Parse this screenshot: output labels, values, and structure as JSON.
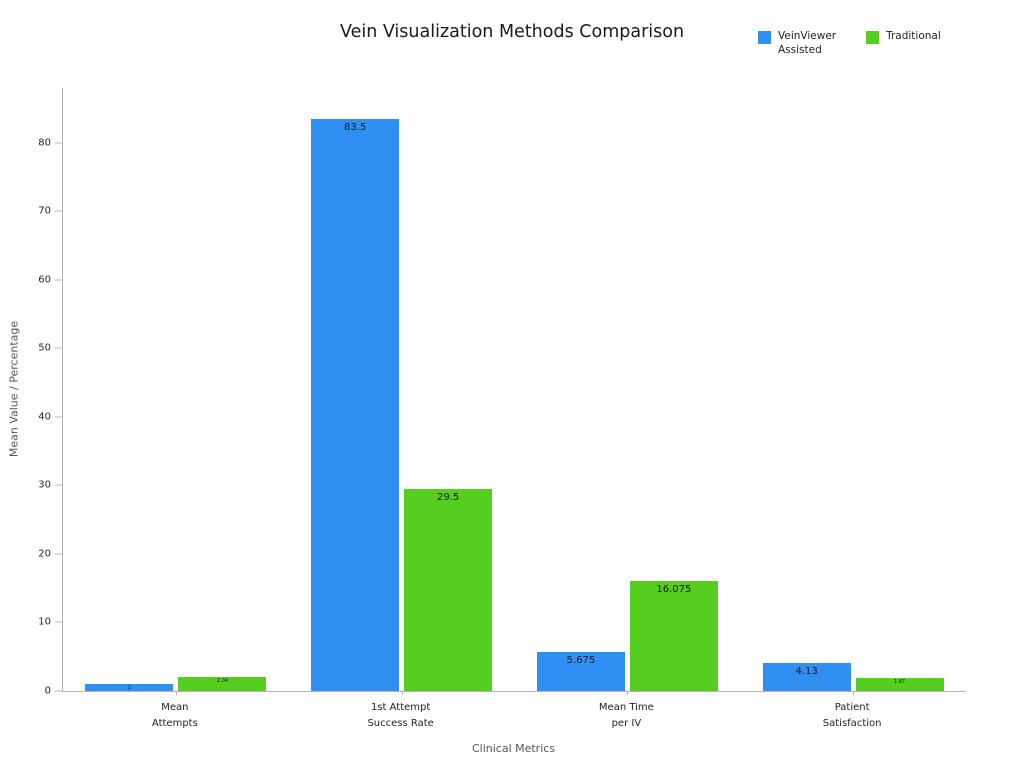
{
  "title": "Vein Visualization Methods Comparison",
  "legend": [
    {
      "label": "VeinViewer\nAssisted",
      "color": "#2f8ff3"
    },
    {
      "label": "Traditional",
      "color": "#55ce1f"
    }
  ],
  "chart_data": {
    "type": "bar",
    "title": "Vein Visualization Methods Comparison",
    "xlabel": "Clinical Metrics",
    "ylabel": "Mean Value / Percentage",
    "categories": [
      "Mean\nAttempts",
      "1st Attempt\nSuccess Rate",
      "Mean Time\nper IV",
      "Patient\nSatisfaction"
    ],
    "series": [
      {
        "name": "VeinViewer Assisted",
        "color": "#2f8ff3",
        "values": [
          1,
          83.5,
          5.675,
          4.13
        ],
        "labels": [
          "1",
          "83.5",
          "5.675",
          "4.13"
        ]
      },
      {
        "name": "Traditional",
        "color": "#55ce1f",
        "values": [
          2.04,
          29.5,
          16.075,
          1.87
        ],
        "labels": [
          "2.04",
          "29.5",
          "16.075",
          "1.87"
        ]
      }
    ],
    "ylim": [
      0,
      88
    ],
    "yticks": [
      0,
      10,
      20,
      30,
      40,
      50,
      60,
      70,
      80
    ],
    "grid": false,
    "legend_position": "top-right"
  }
}
